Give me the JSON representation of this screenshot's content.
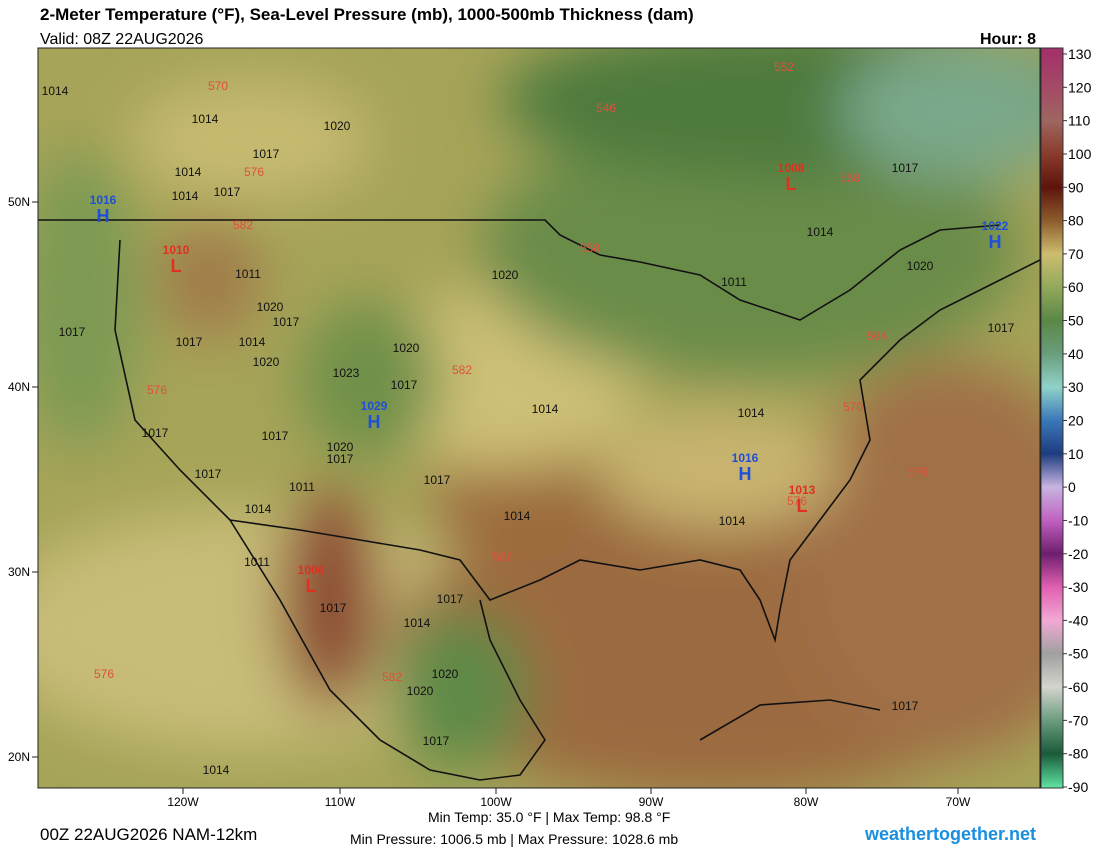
{
  "header": {
    "title": "2-Meter Temperature (°F), Sea-Level Pressure (mb), 1000-500mb Thickness (dam)",
    "valid": "Valid: 08Z 22AUG2026",
    "hour": "Hour: 8"
  },
  "colorbar": {
    "ticks": [
      130,
      120,
      110,
      100,
      90,
      80,
      70,
      60,
      50,
      40,
      30,
      20,
      10,
      0,
      -10,
      -20,
      -30,
      -40,
      -50,
      -60,
      -70,
      -80,
      -90
    ],
    "colors": [
      "#a3336a",
      "#a34a66",
      "#9e6660",
      "#8a3c2c",
      "#5e140c",
      "#8c5c2c",
      "#cdbd6e",
      "#92a95c",
      "#5a8746",
      "#6a9e7c",
      "#90d2c8",
      "#3a78b8",
      "#1e3c80",
      "#c8b4e2",
      "#c060c0",
      "#6e1e6e",
      "#e060b0",
      "#f2a8d4",
      "#a0a0a0",
      "#d4d4cc",
      "#6c9c80",
      "#1a5a3a",
      "#5ee0a0"
    ]
  },
  "map": {
    "lon_labels": [
      "120W",
      "110W",
      "100W",
      "90W",
      "80W",
      "70W"
    ],
    "lat_labels": [
      "50N",
      "40N",
      "30N",
      "20N"
    ],
    "highs": [
      {
        "symbol": "H",
        "value": 1016
      },
      {
        "symbol": "H",
        "value": 1029
      },
      {
        "symbol": "H",
        "value": 1016
      },
      {
        "symbol": "H",
        "value": 1022
      }
    ],
    "lows": [
      {
        "symbol": "L",
        "value": 1010
      },
      {
        "symbol": "L",
        "value": 1008
      },
      {
        "symbol": "L",
        "value": 1013
      },
      {
        "symbol": "L",
        "value": 1006
      }
    ],
    "isobar_labels": [
      1014,
      1014,
      1020,
      1017,
      1014,
      1014,
      1017,
      1011,
      1020,
      1017,
      1014,
      1017,
      1017,
      1020,
      1020,
      1023,
      1017,
      1014,
      1014,
      1017,
      1020,
      1017,
      1017,
      1017,
      1011,
      1014,
      1014,
      1014,
      1011,
      1017,
      1017,
      1014,
      1020,
      1020,
      1017,
      1014,
      1017,
      1020,
      1011,
      1014,
      1020,
      1017,
      1017,
      1017
    ],
    "thickness_labels": [
      570,
      576,
      582,
      546,
      552,
      558,
      558,
      564,
      570,
      576,
      582,
      582,
      576,
      582,
      576,
      576
    ]
  },
  "footer": {
    "model": "00Z 22AUG2026 NAM-12km",
    "temps": "Min Temp:  35.0 °F | Max Temp:  98.8 °F",
    "pressures": "Min Pressure: 1006.5 mb | Max Pressure: 1028.6 mb",
    "site": "weathertogether.net"
  }
}
